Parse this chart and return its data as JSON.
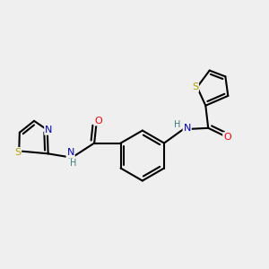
{
  "bg_color": "#efefef",
  "atom_colors": {
    "S": "#b8a000",
    "N": "#0000cc",
    "O": "#ff0000",
    "C": "#000000",
    "H": "#3a8080"
  },
  "bond_color": "#000000",
  "bond_width": 1.5
}
